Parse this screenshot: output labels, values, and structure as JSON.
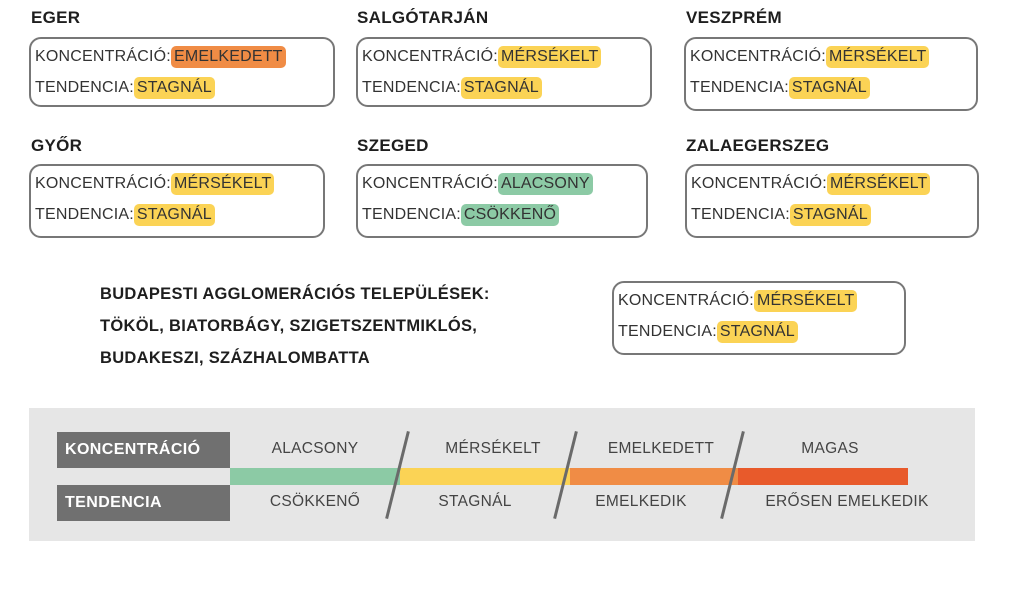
{
  "field_labels": {
    "concentration": "KONCENTRÁCIÓ:",
    "trend": "TENDENCIA:"
  },
  "levels": {
    "alacsony": {
      "label": "ALACSONY",
      "color": "#8ccaa5"
    },
    "merseklet": {
      "label": "MÉRSÉKELT",
      "color": "#fbd355"
    },
    "emelkedett": {
      "label": "EMELKEDETT",
      "color": "#f08c45"
    },
    "magas": {
      "label": "MAGAS",
      "color": "#e85a2b"
    }
  },
  "trends": {
    "csokkeno": {
      "label": "CSÖKKENŐ",
      "color": "#8ccaa5"
    },
    "stagnal": {
      "label": "STAGNÁL",
      "color": "#fbd355"
    }
  },
  "cities": [
    {
      "name": "EGER",
      "concentration": "EMELKEDETT",
      "concentration_color": "#f08c45",
      "trend": "STAGNÁL",
      "trend_color": "#fbd355"
    },
    {
      "name": "SALGÓTARJÁN",
      "concentration": "MÉRSÉKELT",
      "concentration_color": "#fbd355",
      "trend": "STAGNÁL",
      "trend_color": "#fbd355"
    },
    {
      "name": "VESZPRÉM",
      "concentration": "MÉRSÉKELT",
      "concentration_color": "#fbd355",
      "trend": "STAGNÁL",
      "trend_color": "#fbd355"
    },
    {
      "name": "GYŐR",
      "concentration": "MÉRSÉKELT",
      "concentration_color": "#fbd355",
      "trend": "STAGNÁL",
      "trend_color": "#fbd355"
    },
    {
      "name": "SZEGED",
      "concentration": "ALACSONY",
      "concentration_color": "#8ccaa5",
      "trend": "CSÖKKENŐ",
      "trend_color": "#8ccaa5"
    },
    {
      "name": "ZALAEGERSZEG",
      "concentration": "MÉRSÉKELT",
      "concentration_color": "#fbd355",
      "trend": "STAGNÁL",
      "trend_color": "#fbd355"
    }
  ],
  "agglomeration": {
    "lines": [
      "BUDAPESTI AGGLOMERÁCIÓS TELEPÜLÉSEK:",
      "TÖKÖL, BIATORBÁGY, SZIGETSZENTMIKLÓS,",
      "BUDAKESZI, SZÁZHALOMBATTA"
    ],
    "concentration": "MÉRSÉKELT",
    "concentration_color": "#fbd355",
    "trend": "STAGNÁL",
    "trend_color": "#fbd355"
  },
  "legend": {
    "concentration_label": "KONCENTRÁCIÓ",
    "trend_label": "TENDENCIA",
    "concentration_levels": [
      "ALACSONY",
      "MÉRSÉKELT",
      "EMELKEDETT",
      "MAGAS"
    ],
    "trend_levels": [
      "CSÖKKENŐ",
      "STAGNÁL",
      "EMELKEDIK",
      "ERŐSEN EMELKEDIK"
    ],
    "bar_colors": [
      "#8ccaa5",
      "#fbd355",
      "#f08c45",
      "#e85a2b"
    ]
  }
}
